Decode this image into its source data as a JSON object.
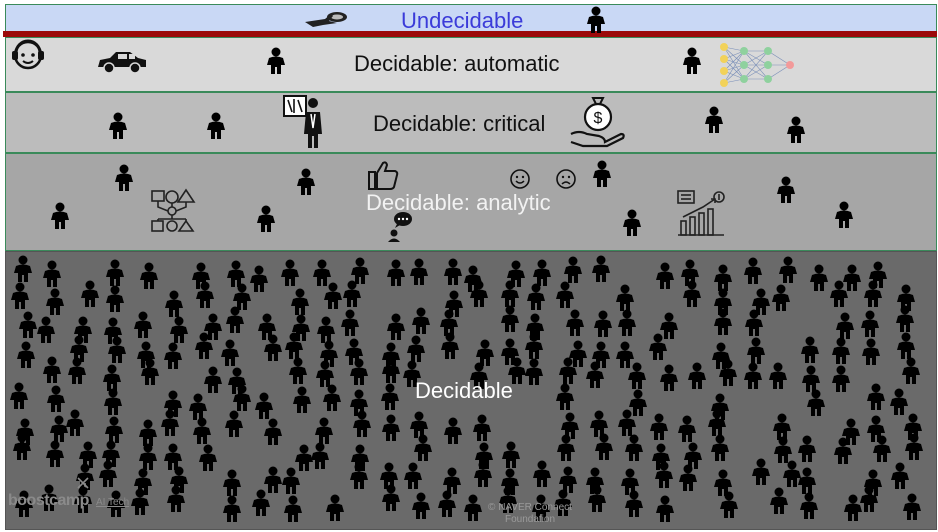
{
  "bands": {
    "undecidable": "Undecidable",
    "automatic": "Decidable: automatic",
    "critical": "Decidable: critical",
    "analytic": "Decidable: analytic",
    "decidable": "Decidable"
  },
  "watermark": {
    "brand": "boostcamp",
    "brand_sub": "AI Tech",
    "copyright": "© NAVER Connect",
    "copyright_line2": "Foundation"
  },
  "colors": {
    "undecidable_bg": "#c9d8f5",
    "undecidable_text": "#3b3bd9",
    "divider": "#9b0a0a",
    "automatic_bg": "#d9d9d9",
    "critical_bg": "#bcbcbc",
    "analytic_bg": "#a6a6a6",
    "decidable_bg": "#6a6a6a"
  },
  "icons": [
    "airplane-icon",
    "headset-agent-icon",
    "car-icon",
    "neural-network-icon",
    "doctor-xray-icon",
    "money-bag-hand-icon",
    "flowchart-shapes-icon",
    "thumbs-up-icon",
    "smile-face-icon",
    "frown-face-icon",
    "speech-person-icon",
    "growth-chart-icon"
  ]
}
